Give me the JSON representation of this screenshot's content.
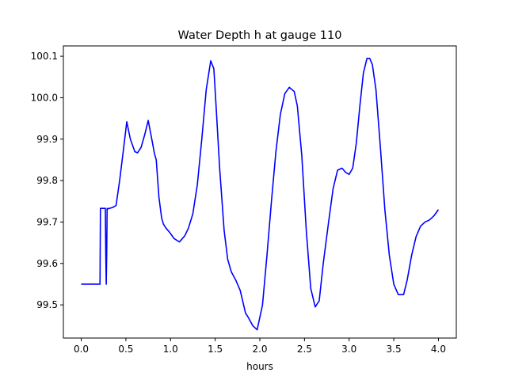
{
  "chart_data": {
    "type": "line",
    "title": "Water Depth h at gauge 110",
    "xlabel": "hours",
    "ylabel": "",
    "xlim": [
      -0.2,
      4.2
    ],
    "ylim": [
      99.42,
      100.125
    ],
    "xticks": [
      0.0,
      0.5,
      1.0,
      1.5,
      2.0,
      2.5,
      3.0,
      3.5,
      4.0
    ],
    "xtick_labels": [
      "0.0",
      "0.5",
      "1.0",
      "1.5",
      "2.0",
      "2.5",
      "3.0",
      "3.5",
      "4.0"
    ],
    "yticks": [
      99.5,
      99.6,
      99.7,
      99.8,
      99.9,
      100.0,
      100.1
    ],
    "ytick_labels": [
      "99.5",
      "99.6",
      "99.7",
      "99.8",
      "99.9",
      "100.0",
      "100.1"
    ],
    "grid": false,
    "legend": "none",
    "series": [
      {
        "color": "#0000ff",
        "x": [
          0.0,
          0.21,
          0.215,
          0.26,
          0.27,
          0.275,
          0.28,
          0.285,
          0.29,
          0.29,
          0.3,
          0.35,
          0.39,
          0.43,
          0.47,
          0.51,
          0.55,
          0.575,
          0.6,
          0.63,
          0.67,
          0.71,
          0.75,
          0.79,
          0.82,
          0.84,
          0.87,
          0.9,
          0.92,
          0.95,
          0.99,
          1.04,
          1.1,
          1.16,
          1.2,
          1.25,
          1.3,
          1.35,
          1.4,
          1.45,
          1.485,
          1.51,
          1.55,
          1.6,
          1.64,
          1.68,
          1.73,
          1.78,
          1.84,
          1.87,
          1.92,
          1.97,
          2.03,
          2.08,
          2.13,
          2.18,
          2.23,
          2.28,
          2.33,
          2.385,
          2.42,
          2.47,
          2.52,
          2.57,
          2.62,
          2.665,
          2.71,
          2.77,
          2.82,
          2.87,
          2.92,
          2.96,
          3.0,
          3.04,
          3.08,
          3.12,
          3.16,
          3.2,
          3.23,
          3.26,
          3.3,
          3.35,
          3.4,
          3.45,
          3.5,
          3.55,
          3.61,
          3.65,
          3.7,
          3.75,
          3.8,
          3.85,
          3.9,
          3.95,
          4.0
        ],
        "y": [
          99.55,
          99.55,
          99.733,
          99.733,
          99.733,
          99.62,
          99.55,
          99.62,
          99.733,
          99.733,
          99.732,
          99.735,
          99.74,
          99.8,
          99.87,
          99.942,
          99.9,
          99.885,
          99.87,
          99.867,
          99.88,
          99.91,
          99.945,
          99.9,
          99.865,
          99.85,
          99.76,
          99.71,
          99.695,
          99.685,
          99.675,
          99.66,
          99.652,
          99.667,
          99.685,
          99.72,
          99.79,
          99.9,
          100.02,
          100.089,
          100.07,
          99.98,
          99.83,
          99.68,
          99.61,
          99.58,
          99.56,
          99.535,
          99.48,
          99.47,
          99.45,
          99.44,
          99.5,
          99.62,
          99.75,
          99.87,
          99.96,
          100.01,
          100.025,
          100.015,
          99.98,
          99.86,
          99.68,
          99.54,
          99.495,
          99.51,
          99.6,
          99.7,
          99.78,
          99.825,
          99.83,
          99.82,
          99.815,
          99.83,
          99.89,
          99.98,
          100.06,
          100.095,
          100.095,
          100.08,
          100.02,
          99.88,
          99.73,
          99.62,
          99.55,
          99.525,
          99.525,
          99.56,
          99.62,
          99.665,
          99.69,
          99.7,
          99.705,
          99.715,
          99.73
        ]
      }
    ]
  }
}
